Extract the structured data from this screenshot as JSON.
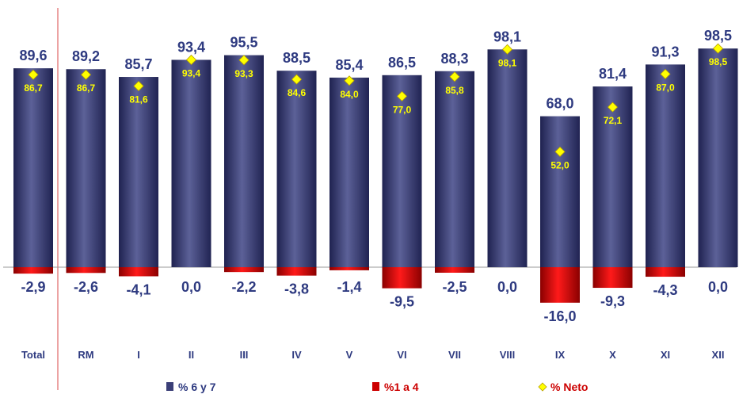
{
  "chart_data": {
    "type": "bar",
    "categories": [
      "Total",
      "RM",
      "I",
      "II",
      "III",
      "IV",
      "V",
      "VI",
      "VII",
      "VIII",
      "IX",
      "X",
      "XI",
      "XII"
    ],
    "series": [
      {
        "name": "% 6 y 7",
        "values": [
          89.6,
          89.2,
          85.7,
          93.4,
          95.5,
          88.5,
          85.4,
          86.5,
          88.3,
          98.1,
          68.0,
          81.4,
          91.3,
          98.5
        ],
        "labels": [
          "89,6",
          "89,2",
          "85,7",
          "93,4",
          "95,5",
          "88,5",
          "85,4",
          "86,5",
          "88,3",
          "98,1",
          "68,0",
          "81,4",
          "91,3",
          "98,5"
        ],
        "color": "#3b3f78"
      },
      {
        "name": "%1 a 4",
        "values": [
          -2.9,
          -2.6,
          -4.1,
          0.0,
          -2.2,
          -3.8,
          -1.4,
          -9.5,
          -2.5,
          0.0,
          -16.0,
          -9.3,
          -4.3,
          0.0
        ],
        "labels": [
          "-2,9",
          "-2,6",
          "-4,1",
          "0,0",
          "-2,2",
          "-3,8",
          "-1,4",
          "-9,5",
          "-2,5",
          "0,0",
          "-16,0",
          "-9,3",
          "-4,3",
          "0,0"
        ],
        "color": "#cc0000"
      },
      {
        "name": "% Neto",
        "values": [
          86.7,
          86.7,
          81.6,
          93.4,
          93.3,
          84.6,
          84.0,
          77.0,
          85.8,
          98.1,
          52.0,
          72.1,
          87.0,
          98.5
        ],
        "labels": [
          "86,7",
          "86,7",
          "81,6",
          "93,4",
          "93,3",
          "84,6",
          "84,0",
          "77,0",
          "85,8",
          "98,1",
          "52,0",
          "72,1",
          "87,0",
          "98,5"
        ],
        "color": "#ffff00"
      }
    ],
    "ylim": [
      -16,
      100
    ],
    "grid": false,
    "legend_position": "bottom"
  }
}
